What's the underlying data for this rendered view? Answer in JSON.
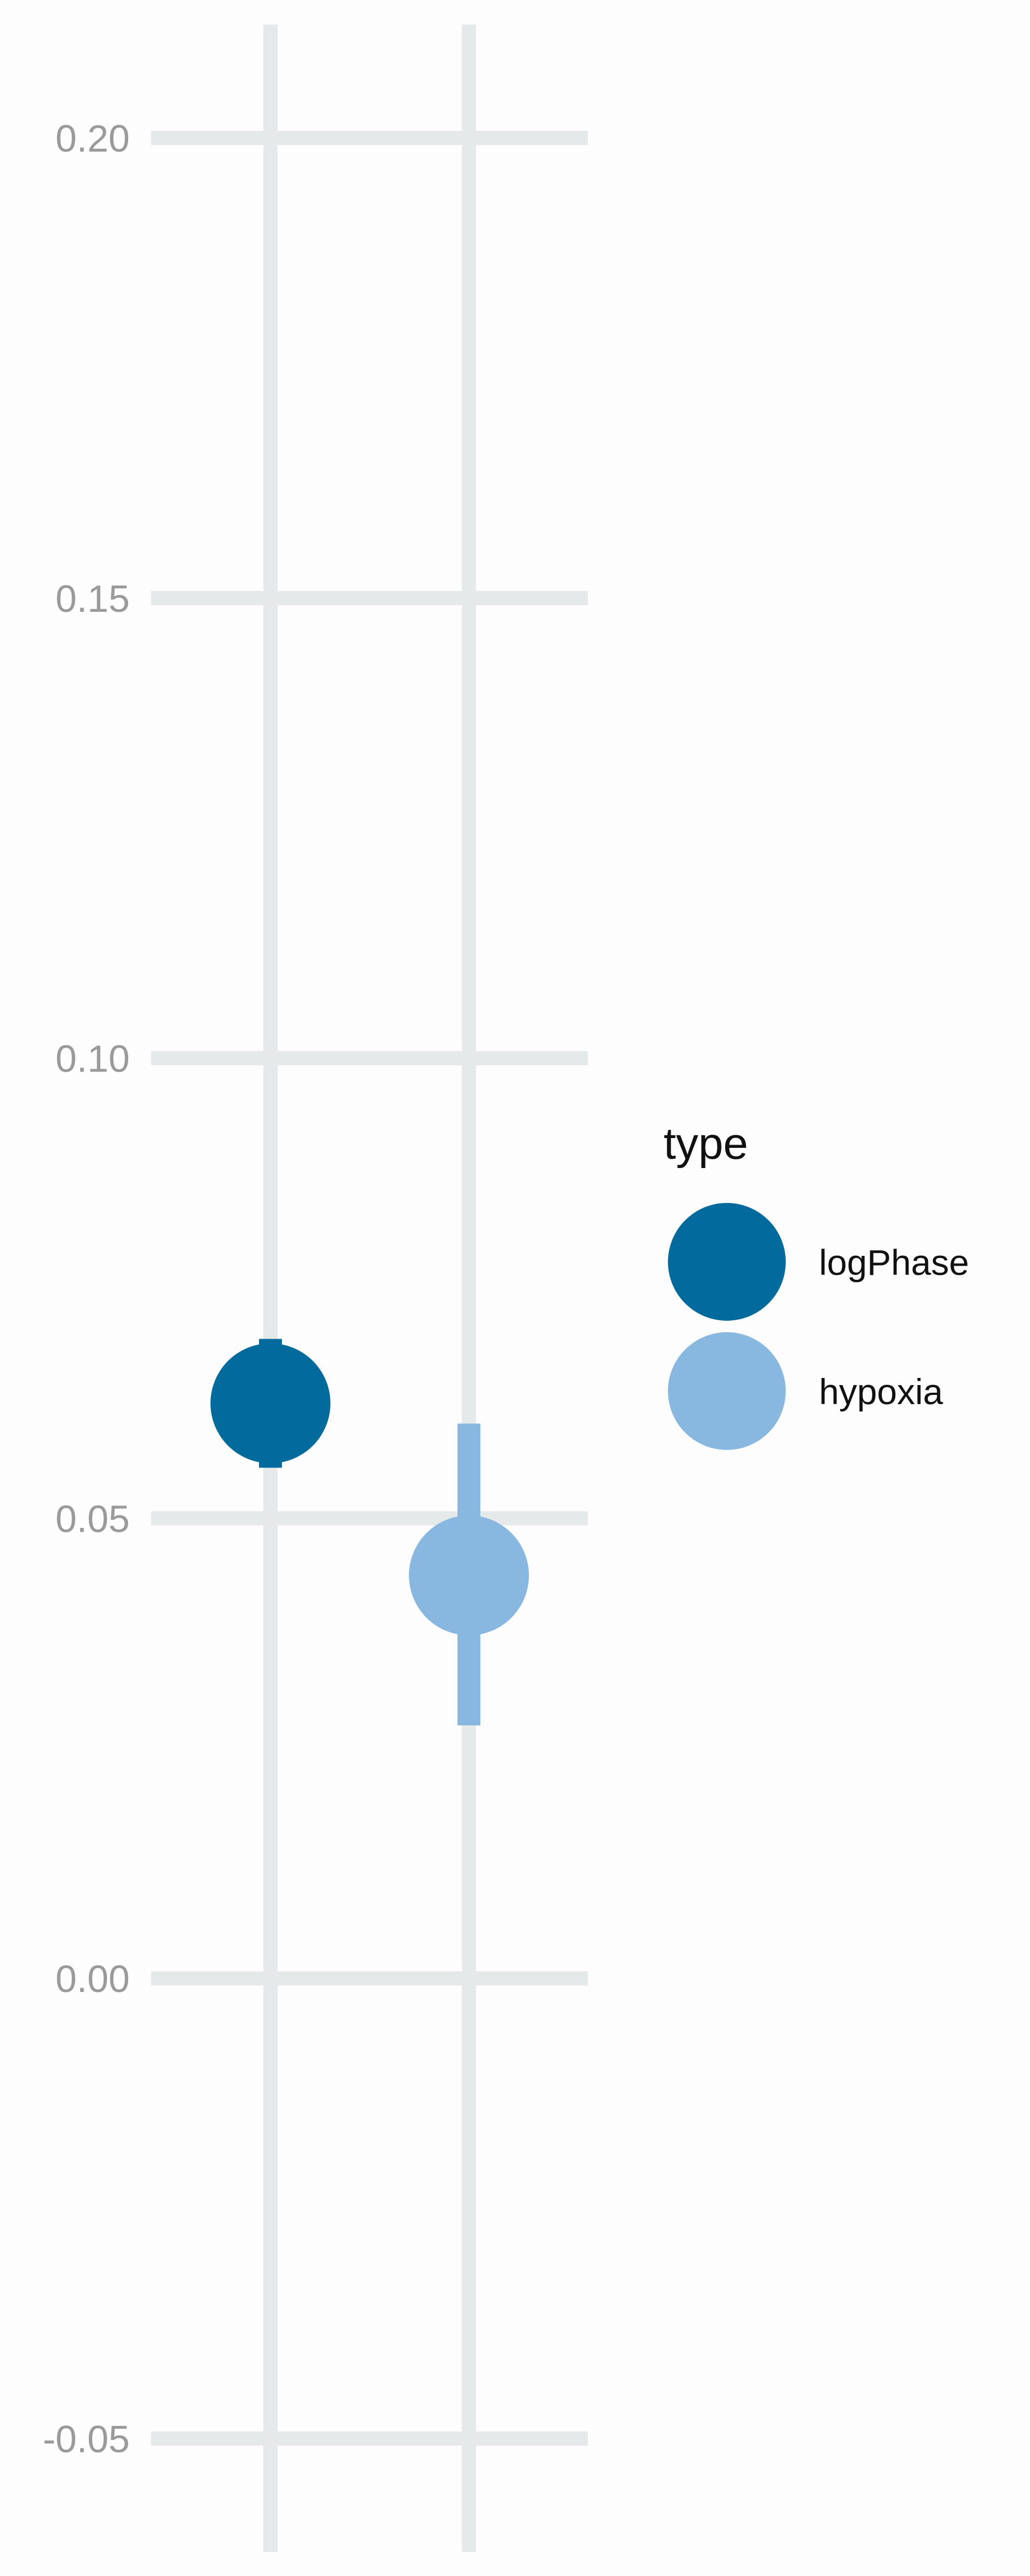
{
  "chart_data": {
    "type": "scatter",
    "title": "",
    "xlabel": "",
    "ylabel": "",
    "ylim": [
      -0.06,
      0.2125
    ],
    "y_ticks": [
      {
        "value": -0.05,
        "label": "-0.05"
      },
      {
        "value": 0.0,
        "label": "0.00"
      },
      {
        "value": 0.05,
        "label": "0.05"
      },
      {
        "value": 0.1,
        "label": "0.10"
      },
      {
        "value": 0.15,
        "label": "0.15"
      },
      {
        "value": 0.2,
        "label": "0.20"
      }
    ],
    "categories": [
      "logPhase",
      "hypoxia"
    ],
    "series": [
      {
        "name": "logPhase",
        "color": "#036b9c",
        "x_index": 0,
        "value": 0.0625,
        "error_low": 0.0555,
        "error_high": 0.0695
      },
      {
        "name": "hypoxia",
        "color": "#88b8e0",
        "x_index": 1,
        "value": 0.0438,
        "error_low": 0.0275,
        "error_high": 0.0603
      }
    ],
    "grid": true,
    "legend": {
      "title": "type",
      "position": "right",
      "entries": [
        {
          "label": "logPhase",
          "color": "#036b9c"
        },
        {
          "label": "hypoxia",
          "color": "#88b8e0"
        }
      ]
    },
    "grid_color": "#e6e9ea"
  }
}
